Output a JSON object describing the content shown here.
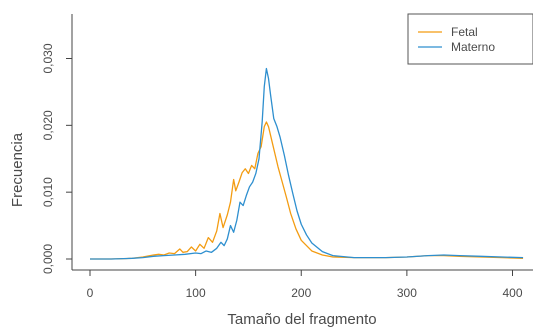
{
  "colors": {
    "fetal": "#f39c12",
    "materno": "#2e8fcf",
    "axis": "#333333",
    "text": "#4b4b4b",
    "background": "#ffffff"
  },
  "chart_data": {
    "type": "line",
    "title": "",
    "xlabel": "Tamaño del fragmento",
    "ylabel": "Frecuencia",
    "xlim": [
      0,
      410
    ],
    "ylim": [
      0,
      0.03
    ],
    "x_ticks": [
      0,
      100,
      200,
      300,
      400
    ],
    "y_ticks": [
      0.0,
      0.01,
      0.02,
      0.03
    ],
    "x_tick_labels": [
      "0",
      "100",
      "200",
      "300",
      "400"
    ],
    "y_tick_labels": [
      "0,000",
      "0,010",
      "0,020",
      "0,030"
    ],
    "grid": false,
    "legend_position": "top-right",
    "series": [
      {
        "name": "Fetal",
        "color": "#f39c12",
        "points": [
          [
            0,
            0.0
          ],
          [
            20,
            0.0
          ],
          [
            40,
            0.0001
          ],
          [
            50,
            0.0003
          ],
          [
            60,
            0.0006
          ],
          [
            65,
            0.0007
          ],
          [
            70,
            0.0006
          ],
          [
            75,
            0.0009
          ],
          [
            80,
            0.0008
          ],
          [
            85,
            0.0015
          ],
          [
            88,
            0.001
          ],
          [
            92,
            0.0011
          ],
          [
            96,
            0.0018
          ],
          [
            100,
            0.0012
          ],
          [
            104,
            0.0022
          ],
          [
            108,
            0.0016
          ],
          [
            112,
            0.0032
          ],
          [
            116,
            0.0025
          ],
          [
            120,
            0.0042
          ],
          [
            123,
            0.0068
          ],
          [
            126,
            0.0047
          ],
          [
            130,
            0.0066
          ],
          [
            133,
            0.0085
          ],
          [
            136,
            0.0119
          ],
          [
            138,
            0.0102
          ],
          [
            141,
            0.0115
          ],
          [
            144,
            0.0129
          ],
          [
            147,
            0.0135
          ],
          [
            150,
            0.0128
          ],
          [
            153,
            0.014
          ],
          [
            156,
            0.0135
          ],
          [
            159,
            0.0158
          ],
          [
            162,
            0.0168
          ],
          [
            165,
            0.0198
          ],
          [
            167,
            0.0205
          ],
          [
            169,
            0.0198
          ],
          [
            172,
            0.0178
          ],
          [
            175,
            0.0158
          ],
          [
            178,
            0.0138
          ],
          [
            182,
            0.0115
          ],
          [
            186,
            0.0092
          ],
          [
            190,
            0.0068
          ],
          [
            195,
            0.0045
          ],
          [
            200,
            0.0028
          ],
          [
            210,
            0.0012
          ],
          [
            220,
            0.0006
          ],
          [
            230,
            0.0003
          ],
          [
            250,
            0.0002
          ],
          [
            280,
            0.0002
          ],
          [
            300,
            0.0003
          ],
          [
            320,
            0.0005
          ],
          [
            335,
            0.0005
          ],
          [
            350,
            0.0004
          ],
          [
            370,
            0.0003
          ],
          [
            390,
            0.0002
          ],
          [
            410,
            0.0001
          ]
        ]
      },
      {
        "name": "Materno",
        "color": "#2e8fcf",
        "points": [
          [
            0,
            0.0
          ],
          [
            20,
            0.0
          ],
          [
            40,
            0.0001
          ],
          [
            50,
            0.0002
          ],
          [
            60,
            0.0004
          ],
          [
            70,
            0.0005
          ],
          [
            80,
            0.0006
          ],
          [
            90,
            0.0007
          ],
          [
            100,
            0.0009
          ],
          [
            105,
            0.0008
          ],
          [
            110,
            0.0012
          ],
          [
            115,
            0.001
          ],
          [
            120,
            0.0016
          ],
          [
            124,
            0.0025
          ],
          [
            127,
            0.002
          ],
          [
            130,
            0.003
          ],
          [
            133,
            0.005
          ],
          [
            136,
            0.004
          ],
          [
            139,
            0.0058
          ],
          [
            142,
            0.0085
          ],
          [
            145,
            0.008
          ],
          [
            148,
            0.0095
          ],
          [
            151,
            0.0108
          ],
          [
            154,
            0.0115
          ],
          [
            157,
            0.0128
          ],
          [
            160,
            0.015
          ],
          [
            163,
            0.0205
          ],
          [
            165,
            0.0258
          ],
          [
            167,
            0.0285
          ],
          [
            169,
            0.027
          ],
          [
            171,
            0.0245
          ],
          [
            174,
            0.021
          ],
          [
            177,
            0.0198
          ],
          [
            180,
            0.0182
          ],
          [
            184,
            0.0155
          ],
          [
            188,
            0.0125
          ],
          [
            192,
            0.0098
          ],
          [
            196,
            0.0072
          ],
          [
            200,
            0.0052
          ],
          [
            205,
            0.0036
          ],
          [
            210,
            0.0024
          ],
          [
            220,
            0.0011
          ],
          [
            230,
            0.0005
          ],
          [
            250,
            0.0002
          ],
          [
            280,
            0.0002
          ],
          [
            300,
            0.0003
          ],
          [
            320,
            0.0005
          ],
          [
            335,
            0.0006
          ],
          [
            350,
            0.0005
          ],
          [
            370,
            0.0004
          ],
          [
            390,
            0.0003
          ],
          [
            410,
            0.0002
          ]
        ]
      }
    ]
  }
}
